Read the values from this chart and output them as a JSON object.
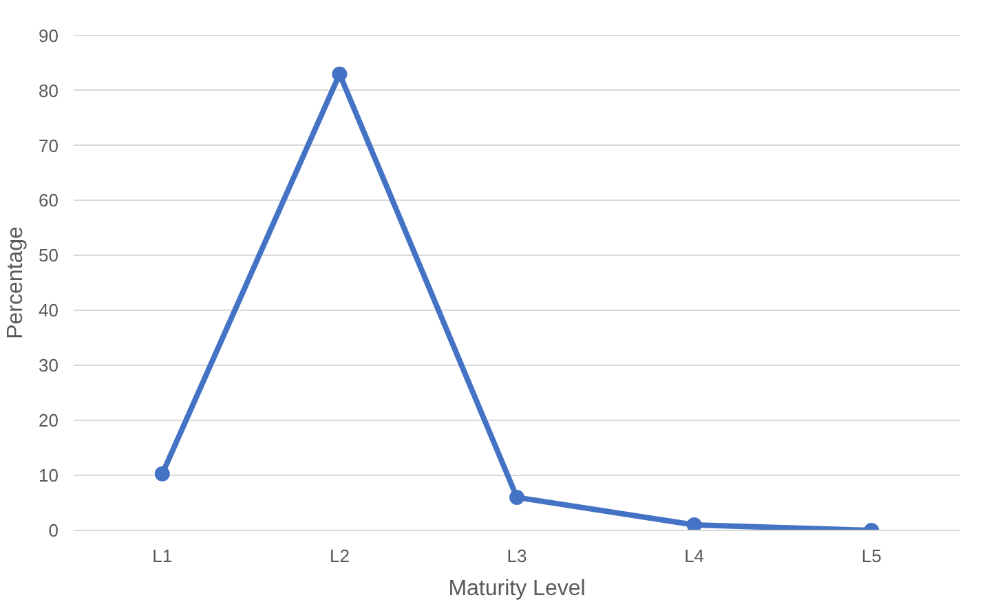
{
  "chart_data": {
    "type": "line",
    "xlabel": "Maturity Level",
    "ylabel": "Percentage",
    "categories": [
      "L1",
      "L2",
      "L3",
      "L4",
      "L5"
    ],
    "series": [
      {
        "color": "#4472c4",
        "values": [
          10.3,
          83,
          6,
          1,
          0
        ]
      }
    ],
    "ylim": [
      0,
      90
    ],
    "yticks": [
      0,
      10,
      20,
      30,
      40,
      50,
      60,
      70,
      80,
      90
    ],
    "grid": "y",
    "marker": "circle",
    "line_style": "solid"
  }
}
